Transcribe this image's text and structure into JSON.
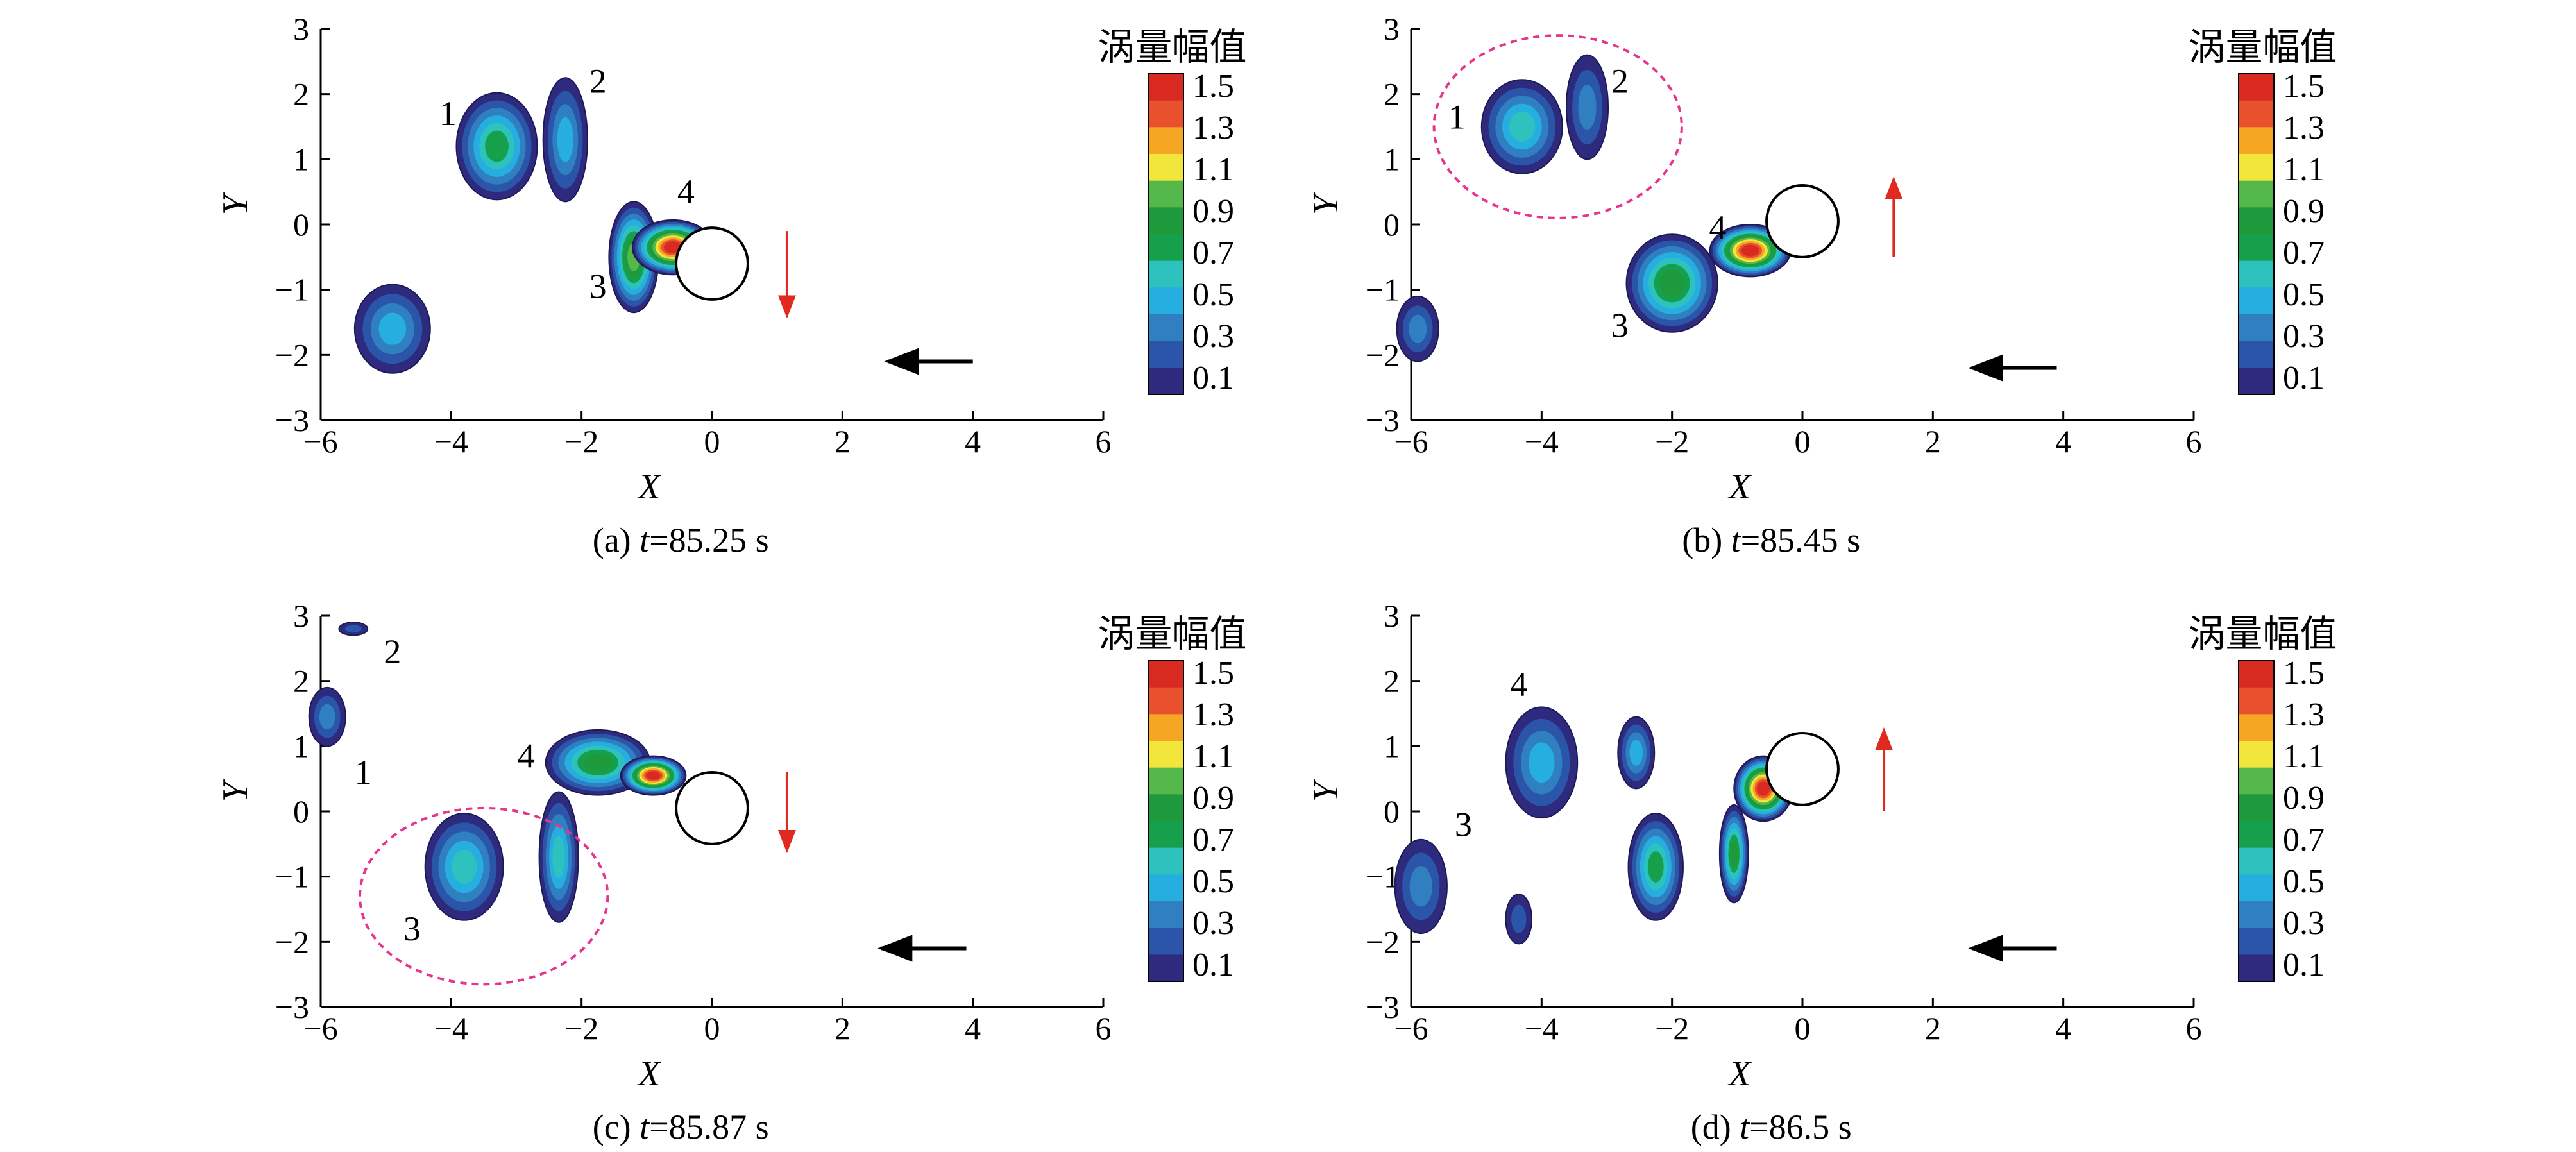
{
  "colors": {
    "vorticity_scale": [
      "#2e2a7e",
      "#2a55a8",
      "#2f7fc1",
      "#26aee0",
      "#2ec2bf",
      "#16a04c",
      "#1e9a3c",
      "#55b84a",
      "#f2e63c",
      "#f5a623",
      "#e9502e",
      "#d82a21"
    ],
    "cylinder_outline": "#000000",
    "flow_arrow": "#000000",
    "motion_arrow": "#e02a20",
    "highlight_ellipse": "#e8348a"
  },
  "colorbar": {
    "title": "涡量幅值",
    "ticks": [
      "1.5",
      "1.3",
      "1.1",
      "0.9",
      "0.7",
      "0.5",
      "0.3",
      "0.1"
    ]
  },
  "chart_data": [
    {
      "type": "heatmap",
      "caption_prefix": "(a) ",
      "caption_t": "t",
      "caption_value": "=85.25 s",
      "xlabel": "X",
      "ylabel": "Y",
      "xlim": [
        -6,
        6
      ],
      "ylim": [
        -3,
        3
      ],
      "xticks": [
        "−6",
        "−4",
        "−2",
        "0",
        "2",
        "4",
        "6"
      ],
      "yticks": [
        "3",
        "2",
        "1",
        "0",
        "−1",
        "−2",
        "−3"
      ],
      "cylinder": {
        "x": 0,
        "y": -0.6,
        "r": 0.55
      },
      "flow_arrow": {
        "x_from": 4,
        "x_to": 2.7,
        "y": -2.1
      },
      "motion_arrow": {
        "x": 1.15,
        "y_from": -0.1,
        "y_to": -1.4,
        "direction": "down"
      },
      "highlight_ellipse": null,
      "vortices": [
        {
          "label": "1",
          "label_x": -4.05,
          "label_y": 1.7,
          "x": -3.3,
          "y": 1.2,
          "rx": 0.62,
          "ry": 0.82,
          "peak": 0.7
        },
        {
          "label": "",
          "label_x": null,
          "label_y": null,
          "x": -4.9,
          "y": -1.6,
          "rx": 0.58,
          "ry": 0.68,
          "peak": 0.55
        },
        {
          "label": "2",
          "label_x": -1.75,
          "label_y": 2.2,
          "x": -2.25,
          "y": 1.3,
          "rx": 0.34,
          "ry": 0.95,
          "peak": 0.5
        },
        {
          "label": "3",
          "label_x": -1.75,
          "label_y": -0.95,
          "x": -1.2,
          "y": -0.5,
          "rx": 0.38,
          "ry": 0.85,
          "peak": 0.95
        },
        {
          "label": "4",
          "label_x": -0.4,
          "label_y": 0.5,
          "x": -0.6,
          "y": -0.35,
          "rx": 0.62,
          "ry": 0.42,
          "peak": 1.5
        }
      ]
    },
    {
      "type": "heatmap",
      "caption_prefix": "(b) ",
      "caption_t": "t",
      "caption_value": "=85.45 s",
      "xlabel": "X",
      "ylabel": "Y",
      "xlim": [
        -6,
        6
      ],
      "ylim": [
        -3,
        3
      ],
      "xticks": [
        "−6",
        "−4",
        "−2",
        "0",
        "2",
        "4",
        "6"
      ],
      "yticks": [
        "3",
        "2",
        "1",
        "0",
        "−1",
        "−2",
        "−3"
      ],
      "cylinder": {
        "x": 0,
        "y": 0.05,
        "r": 0.55
      },
      "flow_arrow": {
        "x_from": 3.9,
        "x_to": 2.6,
        "y": -2.2
      },
      "motion_arrow": {
        "x": 1.4,
        "y_from": -0.5,
        "y_to": 0.7,
        "direction": "up"
      },
      "highlight_ellipse": {
        "x": -3.75,
        "y": 1.5,
        "rx": 1.9,
        "ry": 1.4
      },
      "vortices": [
        {
          "label": "1",
          "label_x": -5.3,
          "label_y": 1.65,
          "x": -4.3,
          "y": 1.5,
          "rx": 0.62,
          "ry": 0.72,
          "peak": 0.65
        },
        {
          "label": "2",
          "label_x": -2.8,
          "label_y": 2.2,
          "x": -3.3,
          "y": 1.8,
          "rx": 0.32,
          "ry": 0.8,
          "peak": 0.4
        },
        {
          "label": "",
          "label_x": null,
          "label_y": null,
          "x": -5.9,
          "y": -1.6,
          "rx": 0.32,
          "ry": 0.5,
          "peak": 0.35
        },
        {
          "label": "3",
          "label_x": -2.8,
          "label_y": -1.55,
          "x": -2.0,
          "y": -0.9,
          "rx": 0.7,
          "ry": 0.75,
          "peak": 0.85
        },
        {
          "label": "4",
          "label_x": -1.3,
          "label_y": -0.05,
          "x": -0.8,
          "y": -0.4,
          "rx": 0.62,
          "ry": 0.4,
          "peak": 1.5
        }
      ]
    },
    {
      "type": "heatmap",
      "caption_prefix": "(c) ",
      "caption_t": "t",
      "caption_value": "=85.87 s",
      "xlabel": "X",
      "ylabel": "Y",
      "xlim": [
        -6,
        6
      ],
      "ylim": [
        -3,
        3
      ],
      "xticks": [
        "−6",
        "−4",
        "−2",
        "0",
        "2",
        "4",
        "6"
      ],
      "yticks": [
        "3",
        "2",
        "1",
        "0",
        "−1",
        "−2",
        "−3"
      ],
      "cylinder": {
        "x": 0,
        "y": 0.05,
        "r": 0.55
      },
      "flow_arrow": {
        "x_from": 3.9,
        "x_to": 2.6,
        "y": -2.1
      },
      "motion_arrow": {
        "x": 1.15,
        "y_from": 0.6,
        "y_to": -0.6,
        "direction": "down"
      },
      "highlight_ellipse": {
        "x": -3.5,
        "y": -1.3,
        "rx": 1.9,
        "ry": 1.35
      },
      "vortices": [
        {
          "label": "2",
          "label_x": -4.9,
          "label_y": 2.45,
          "x": -5.5,
          "y": 2.8,
          "rx": 0.22,
          "ry": 0.1,
          "peak": 0.3
        },
        {
          "label": "1",
          "label_x": -5.35,
          "label_y": 0.6,
          "x": -5.9,
          "y": 1.45,
          "rx": 0.28,
          "ry": 0.45,
          "peak": 0.4
        },
        {
          "label": "3",
          "label_x": -4.6,
          "label_y": -1.8,
          "x": -3.8,
          "y": -0.85,
          "rx": 0.6,
          "ry": 0.82,
          "peak": 0.6
        },
        {
          "label": "",
          "label_x": null,
          "label_y": null,
          "x": -2.35,
          "y": -0.7,
          "rx": 0.3,
          "ry": 1.0,
          "peak": 0.6
        },
        {
          "label": "4",
          "label_x": -2.85,
          "label_y": 0.85,
          "x": -1.75,
          "y": 0.75,
          "rx": 0.8,
          "ry": 0.5,
          "peak": 0.85
        },
        {
          "label": "",
          "label_x": null,
          "label_y": null,
          "x": -0.9,
          "y": 0.55,
          "rx": 0.5,
          "ry": 0.3,
          "peak": 1.5
        }
      ]
    },
    {
      "type": "heatmap",
      "caption_prefix": "(d) ",
      "caption_t": "t",
      "caption_value": "=86.5 s",
      "xlabel": "X",
      "ylabel": "Y",
      "xlim": [
        -6,
        6
      ],
      "ylim": [
        -3,
        3
      ],
      "xticks": [
        "−6",
        "−4",
        "−2",
        "0",
        "2",
        "4",
        "6"
      ],
      "yticks": [
        "3",
        "2",
        "1",
        "0",
        "−1",
        "−2",
        "−3"
      ],
      "cylinder": {
        "x": 0,
        "y": 0.65,
        "r": 0.55
      },
      "flow_arrow": {
        "x_from": 3.9,
        "x_to": 2.6,
        "y": -2.1
      },
      "motion_arrow": {
        "x": 1.25,
        "y_from": 0.0,
        "y_to": 1.25,
        "direction": "up"
      },
      "highlight_ellipse": null,
      "vortices": [
        {
          "label": "4",
          "label_x": -4.35,
          "label_y": 1.95,
          "x": -4.0,
          "y": 0.75,
          "rx": 0.55,
          "ry": 0.85,
          "peak": 0.55
        },
        {
          "label": "3",
          "label_x": -5.2,
          "label_y": -0.2,
          "x": -5.85,
          "y": -1.15,
          "rx": 0.4,
          "ry": 0.72,
          "peak": 0.4
        },
        {
          "label": "",
          "label_x": null,
          "label_y": null,
          "x": -4.35,
          "y": -1.65,
          "rx": 0.2,
          "ry": 0.38,
          "peak": 0.3
        },
        {
          "label": "",
          "label_x": null,
          "label_y": null,
          "x": -2.55,
          "y": 0.9,
          "rx": 0.28,
          "ry": 0.55,
          "peak": 0.5
        },
        {
          "label": "",
          "label_x": null,
          "label_y": null,
          "x": -2.25,
          "y": -0.85,
          "rx": 0.42,
          "ry": 0.82,
          "peak": 0.75
        },
        {
          "label": "",
          "label_x": null,
          "label_y": null,
          "x": -1.05,
          "y": -0.65,
          "rx": 0.22,
          "ry": 0.75,
          "peak": 0.85
        },
        {
          "label": "",
          "label_x": null,
          "label_y": null,
          "x": -0.6,
          "y": 0.35,
          "rx": 0.45,
          "ry": 0.5,
          "peak": 1.5
        }
      ]
    }
  ]
}
